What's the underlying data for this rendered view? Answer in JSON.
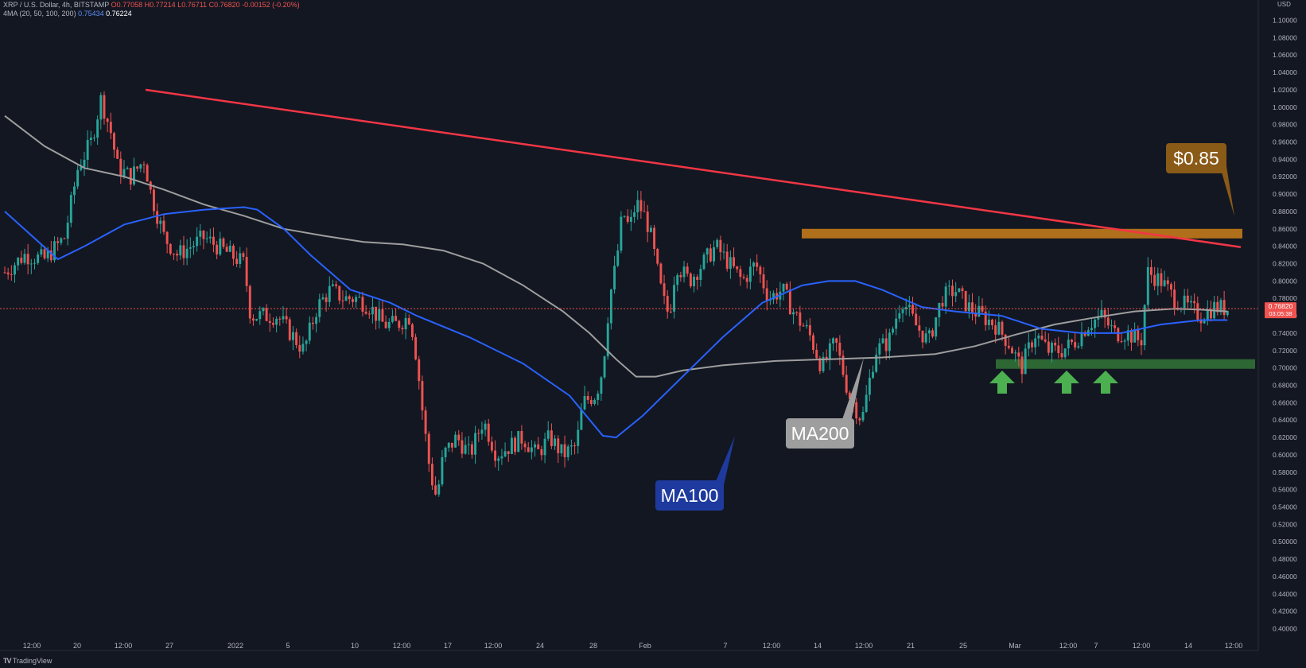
{
  "header": {
    "symbol": "XRP / U.S. Dollar, 4h, BITSTAMP",
    "o": "O0.77058",
    "h": "H0.77214",
    "l": "L0.76711",
    "c": "C0.76820",
    "change": "-0.00152 (-0.20%)",
    "indicator": "4MA (20, 50, 100, 200)",
    "ma_val1": "0.75434",
    "ma_val2": "0.76224"
  },
  "currency": "USD",
  "footer": "TradingView",
  "price_label": {
    "value": "0.76820",
    "countdown": "03:05:38"
  },
  "colors": {
    "background": "#131722",
    "trendline": "#f23645",
    "ma100": "#2962ff",
    "ma200": "#9e9e9e",
    "resistance": "#b8741a",
    "support": "#2e6b35",
    "up": "#26a69a",
    "down": "#ef5350",
    "arrow": "#4caf50"
  },
  "chart_data": {
    "type": "candlestick",
    "x_ticks": [
      "12:00",
      "20",
      "12:00",
      "27",
      "2022",
      "5",
      "10",
      "12:00",
      "17",
      "12:00",
      "24",
      "28",
      "Feb",
      "7",
      "12:00",
      "14",
      "12:00",
      "21",
      "25",
      "Mar",
      "12:00",
      "7",
      "12:00",
      "14",
      "12:00"
    ],
    "y_ticks": [
      "1.10000",
      "1.08000",
      "1.06000",
      "1.04000",
      "1.02000",
      "1.00000",
      "0.98000",
      "0.96000",
      "0.94000",
      "0.92000",
      "0.90000",
      "0.88000",
      "0.86000",
      "0.84000",
      "0.82000",
      "0.80000",
      "0.78000",
      "0.76000",
      "0.74000",
      "0.72000",
      "0.70000",
      "0.68000",
      "0.66000",
      "0.64000",
      "0.62000",
      "0.60000",
      "0.58000",
      "0.56000",
      "0.54000",
      "0.52000",
      "0.50000",
      "0.48000",
      "0.46000",
      "0.44000",
      "0.42000",
      "0.40000"
    ],
    "ylim": [
      0.395,
      1.105
    ],
    "price_anchors": [
      [
        0,
        0.81
      ],
      [
        3,
        0.83
      ],
      [
        6,
        0.825
      ],
      [
        9,
        0.85
      ],
      [
        11,
        0.93
      ],
      [
        13,
        0.96
      ],
      [
        14.5,
        1.01
      ],
      [
        16,
        0.97
      ],
      [
        17,
        0.93
      ],
      [
        19,
        0.92
      ],
      [
        21,
        0.94
      ],
      [
        22,
        0.9
      ],
      [
        24,
        0.85
      ],
      [
        26,
        0.83
      ],
      [
        28,
        0.84
      ],
      [
        30,
        0.85
      ],
      [
        32,
        0.84
      ],
      [
        34,
        0.83
      ],
      [
        36,
        0.82
      ],
      [
        37,
        0.76
      ],
      [
        39,
        0.76
      ],
      [
        41,
        0.76
      ],
      [
        43,
        0.74
      ],
      [
        45,
        0.72
      ],
      [
        47,
        0.77
      ],
      [
        49,
        0.79
      ],
      [
        51,
        0.78
      ],
      [
        53,
        0.78
      ],
      [
        55,
        0.77
      ],
      [
        57,
        0.75
      ],
      [
        59,
        0.75
      ],
      [
        61,
        0.76
      ],
      [
        62,
        0.71
      ],
      [
        63,
        0.64
      ],
      [
        64,
        0.58
      ],
      [
        65,
        0.55
      ],
      [
        66,
        0.6
      ],
      [
        68,
        0.62
      ],
      [
        70,
        0.6
      ],
      [
        72,
        0.64
      ],
      [
        74,
        0.6
      ],
      [
        76,
        0.61
      ],
      [
        78,
        0.62
      ],
      [
        80,
        0.6
      ],
      [
        82,
        0.62
      ],
      [
        84,
        0.6
      ],
      [
        86,
        0.61
      ],
      [
        87,
        0.66
      ],
      [
        89,
        0.67
      ],
      [
        90,
        0.7
      ],
      [
        91,
        0.78
      ],
      [
        92,
        0.82
      ],
      [
        93,
        0.88
      ],
      [
        94,
        0.86
      ],
      [
        95,
        0.89
      ],
      [
        96,
        0.88
      ],
      [
        97,
        0.86
      ],
      [
        98,
        0.82
      ],
      [
        99,
        0.78
      ],
      [
        100,
        0.76
      ],
      [
        101,
        0.82
      ],
      [
        103,
        0.8
      ],
      [
        105,
        0.82
      ],
      [
        107,
        0.84
      ],
      [
        109,
        0.82
      ],
      [
        111,
        0.8
      ],
      [
        113,
        0.82
      ],
      [
        115,
        0.78
      ],
      [
        117,
        0.79
      ],
      [
        119,
        0.76
      ],
      [
        121,
        0.74
      ],
      [
        123,
        0.7
      ],
      [
        125,
        0.73
      ],
      [
        127,
        0.67
      ],
      [
        129,
        0.64
      ],
      [
        131,
        0.72
      ],
      [
        133,
        0.73
      ],
      [
        135,
        0.78
      ],
      [
        137,
        0.75
      ],
      [
        139,
        0.73
      ],
      [
        141,
        0.78
      ],
      [
        143,
        0.79
      ],
      [
        145,
        0.77
      ],
      [
        147,
        0.76
      ],
      [
        149,
        0.75
      ],
      [
        151,
        0.73
      ],
      [
        153,
        0.7
      ],
      [
        155,
        0.74
      ],
      [
        157,
        0.72
      ],
      [
        159,
        0.72
      ],
      [
        161,
        0.73
      ],
      [
        163,
        0.75
      ],
      [
        165,
        0.76
      ],
      [
        167,
        0.74
      ],
      [
        169,
        0.74
      ],
      [
        171,
        0.73
      ],
      [
        172,
        0.81
      ],
      [
        174,
        0.8
      ],
      [
        176,
        0.78
      ],
      [
        178,
        0.77
      ],
      [
        180,
        0.76
      ],
      [
        182,
        0.77
      ],
      [
        184,
        0.768
      ]
    ],
    "ma100": [
      [
        0,
        0.88
      ],
      [
        8,
        0.825
      ],
      [
        12,
        0.84
      ],
      [
        18,
        0.865
      ],
      [
        24,
        0.877
      ],
      [
        30,
        0.882
      ],
      [
        36,
        0.885
      ],
      [
        38,
        0.882
      ],
      [
        42,
        0.86
      ],
      [
        46,
        0.83
      ],
      [
        52,
        0.79
      ],
      [
        58,
        0.775
      ],
      [
        62,
        0.76
      ],
      [
        70,
        0.735
      ],
      [
        78,
        0.705
      ],
      [
        85,
        0.668
      ],
      [
        90,
        0.622
      ],
      [
        92,
        0.62
      ],
      [
        96,
        0.645
      ],
      [
        102,
        0.69
      ],
      [
        108,
        0.735
      ],
      [
        114,
        0.775
      ],
      [
        120,
        0.795
      ],
      [
        124,
        0.8
      ],
      [
        128,
        0.8
      ],
      [
        132,
        0.79
      ],
      [
        138,
        0.77
      ],
      [
        143,
        0.765
      ],
      [
        150,
        0.76
      ],
      [
        156,
        0.745
      ],
      [
        162,
        0.74
      ],
      [
        168,
        0.74
      ],
      [
        174,
        0.75
      ],
      [
        180,
        0.755
      ],
      [
        184,
        0.755
      ]
    ],
    "ma200": [
      [
        0,
        0.99
      ],
      [
        6,
        0.955
      ],
      [
        12,
        0.93
      ],
      [
        18,
        0.92
      ],
      [
        24,
        0.905
      ],
      [
        30,
        0.888
      ],
      [
        36,
        0.875
      ],
      [
        42,
        0.86
      ],
      [
        48,
        0.852
      ],
      [
        54,
        0.845
      ],
      [
        60,
        0.842
      ],
      [
        66,
        0.835
      ],
      [
        72,
        0.82
      ],
      [
        78,
        0.795
      ],
      [
        84,
        0.765
      ],
      [
        88,
        0.74
      ],
      [
        92,
        0.71
      ],
      [
        95,
        0.69
      ],
      [
        98,
        0.69
      ],
      [
        102,
        0.697
      ],
      [
        108,
        0.703
      ],
      [
        116,
        0.708
      ],
      [
        124,
        0.71
      ],
      [
        132,
        0.712
      ],
      [
        140,
        0.716
      ],
      [
        146,
        0.725
      ],
      [
        152,
        0.738
      ],
      [
        158,
        0.75
      ],
      [
        164,
        0.758
      ],
      [
        170,
        0.765
      ],
      [
        176,
        0.768
      ],
      [
        180,
        0.767
      ],
      [
        184,
        0.765
      ]
    ],
    "trendline": {
      "start": [
        14,
        1.02
      ],
      "end": [
        186,
        0.839
      ]
    },
    "resistance_zone": [
      0.849,
      0.86
    ],
    "support_zone": [
      0.699,
      0.71
    ],
    "current_price": 0.7682,
    "annotations": [
      {
        "text": "$0.85",
        "kind": "price-callout"
      },
      {
        "text": "MA200",
        "kind": "ma-label"
      },
      {
        "text": "MA100",
        "kind": "ma-label"
      }
    ]
  }
}
